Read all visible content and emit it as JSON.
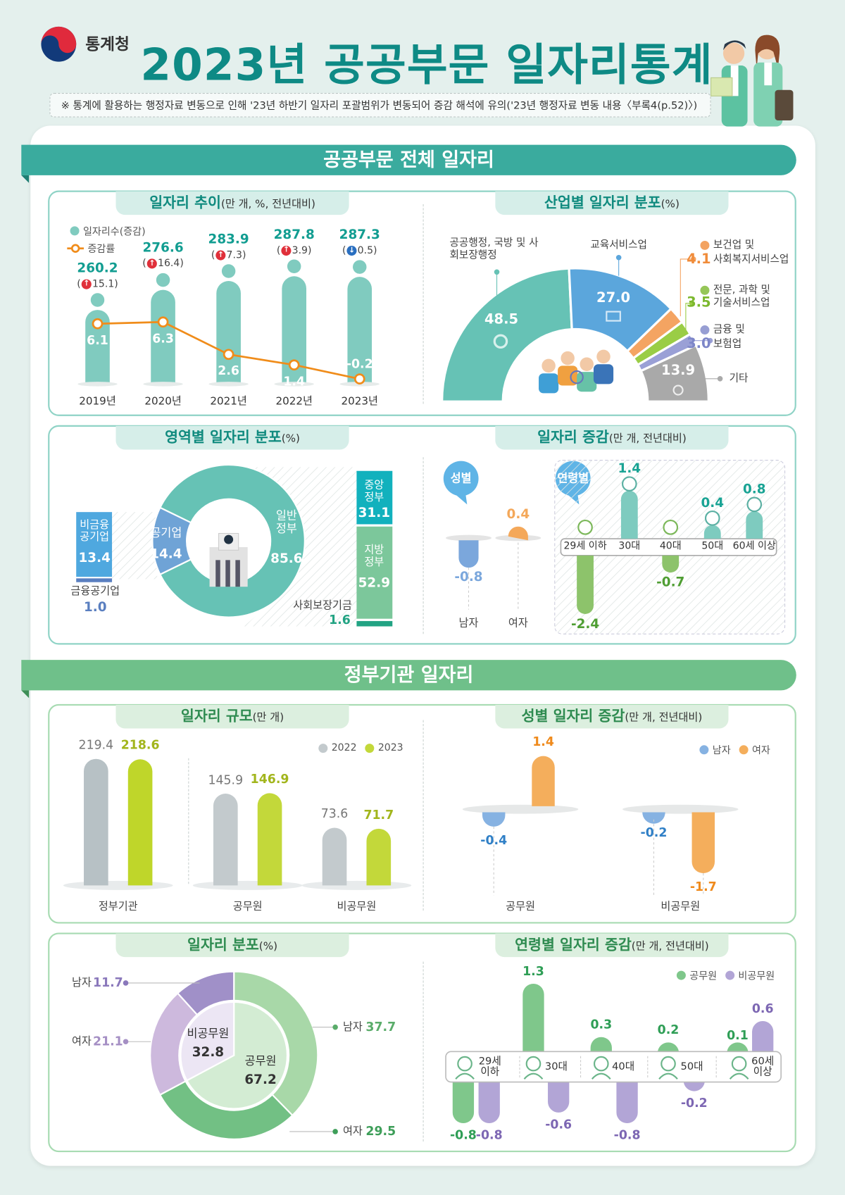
{
  "header": {
    "org": "통계청",
    "title": "2023년 공공부문 일자리통계",
    "note": "※ 통계에 활용하는 행정자료 변동으로 인해 '23년 하반기 일자리 포괄범위가 변동되어 증감 해석에 유의('23년 행정자료 변동 내용〈부록4(p.52)〉)"
  },
  "sections": [
    {
      "title": "공공부문 전체 일자리"
    },
    {
      "title": "정부기관 일자리"
    }
  ],
  "colors": {
    "brand_teal": "#0e8a85",
    "section1": "#3aab9e",
    "section2": "#6fc08a",
    "up_arrow": "#e0303a",
    "down_arrow": "#2a6fc0"
  },
  "chart_data": [
    {
      "type": "bar+line",
      "title": "일자리 추이",
      "unit": "(만 개, %, 전년대비)",
      "categories": [
        "2019년",
        "2020년",
        "2021년",
        "2022년",
        "2023년"
      ],
      "legend": [
        "일자리수(증감)",
        "증감률"
      ],
      "series": [
        {
          "name": "일자리수(증감)",
          "values": [
            260.2,
            276.6,
            283.9,
            287.8,
            287.3
          ],
          "change_labels": [
            "15.1",
            "16.4",
            "7.3",
            "3.9",
            "0.5"
          ],
          "change_direction": [
            "up",
            "up",
            "up",
            "up",
            "down"
          ],
          "color": "#80cbbf"
        },
        {
          "name": "증감률",
          "values": [
            6.1,
            6.3,
            2.6,
            1.4,
            -0.2
          ],
          "color": "#f08c1a"
        }
      ]
    },
    {
      "type": "pie",
      "shape": "half-donut",
      "title": "산업별 일자리 분포",
      "unit": "(%)",
      "slices": [
        {
          "label": "공공행정, 국방 및 사회보장행정",
          "value": 48.5,
          "color": "#66c2b5",
          "icon": "gear-person-icon"
        },
        {
          "label": "교육서비스업",
          "value": 27.0,
          "color": "#5ba6dc",
          "icon": "book-icon"
        },
        {
          "label_1": "보건업 및",
          "label_2": "사회복지서비스업",
          "value": 4.1,
          "color": "#f4a462",
          "icon": "heart-hand-icon"
        },
        {
          "label_1": "전문, 과학 및",
          "label_2": "기술서비스업",
          "value": 3.5,
          "color": "#9acd45",
          "icon": "tools-icon"
        },
        {
          "label_1": "금융 및",
          "label_2": "보험업",
          "value": 3.0,
          "color": "#9aa0d6",
          "icon": "money-icon"
        },
        {
          "label": "기타",
          "value": 13.9,
          "color": "#a9a9a9",
          "icon": "lightbulb-icon"
        }
      ]
    },
    {
      "type": "pie",
      "shape": "donut",
      "title": "영역별 일자리 분포",
      "unit": "(%)",
      "slices": [
        {
          "label": "일반정부",
          "value": 85.6,
          "color": "#66c2b5"
        },
        {
          "label": "공기업",
          "value": 14.4,
          "color": "#6fa3d6"
        }
      ],
      "public_corp_breakdown": [
        {
          "label": "비금융공기업",
          "value": 13.4,
          "color": "#4fa8df"
        },
        {
          "label": "금융공기업",
          "value": 1.0,
          "color": "#5a7fc0"
        }
      ],
      "general_gov_breakdown": [
        {
          "label": "중앙정부",
          "value": 31.1,
          "color": "#12b1bd"
        },
        {
          "label": "지방정부",
          "value": 52.9,
          "color": "#7cc79b"
        },
        {
          "label": "사회보장기금",
          "value": 1.6,
          "color": "#22a383"
        }
      ]
    },
    {
      "type": "bar",
      "title": "일자리 증감",
      "unit": "(만 개, 전년대비)",
      "groups": [
        {
          "name": "성별",
          "categories": [
            "남자",
            "여자"
          ],
          "values": [
            -0.8,
            0.4
          ],
          "colors": [
            "#7ba7dc",
            "#f4a85a"
          ]
        },
        {
          "name": "연령별",
          "categories": [
            "29세 이하",
            "30대",
            "40대",
            "50대",
            "60세 이상"
          ],
          "values": [
            -2.4,
            1.4,
            -0.7,
            0.4,
            0.8
          ],
          "colors": [
            "#8dc36b",
            "#7ecbbf"
          ]
        }
      ]
    },
    {
      "type": "bar",
      "title": "일자리 규모",
      "unit": "(만 개)",
      "categories": [
        "정부기관",
        "공무원",
        "비공무원"
      ],
      "series": [
        {
          "name": "2022",
          "values": [
            219.4,
            145.9,
            73.6
          ],
          "color": "#c3cacd"
        },
        {
          "name": "2023",
          "values": [
            218.6,
            146.9,
            71.7
          ],
          "color": "#c3d83a"
        }
      ],
      "legend": "top-right"
    },
    {
      "type": "bar",
      "title": "성별 일자리 증감",
      "unit": "(만 개, 전년대비)",
      "categories": [
        "공무원",
        "비공무원"
      ],
      "series": [
        {
          "name": "남자",
          "values": [
            -0.4,
            -0.2
          ],
          "color": "#86b2e2"
        },
        {
          "name": "여자",
          "values": [
            1.4,
            -1.7
          ],
          "color": "#f4ae5c"
        }
      ],
      "legend": "top-right"
    },
    {
      "type": "pie",
      "shape": "nested-donut",
      "title": "일자리 분포",
      "unit": "(%)",
      "inner": [
        {
          "label": "공무원",
          "value": 67.2,
          "color": "#d3ecd3"
        },
        {
          "label": "비공무원",
          "value": 32.8,
          "color": "#ece6f4"
        }
      ],
      "outer": [
        {
          "label": "남자",
          "value": 37.7,
          "parent": "공무원",
          "color": "#a8d8a8"
        },
        {
          "label": "여자",
          "value": 29.5,
          "parent": "공무원",
          "color": "#72c084"
        },
        {
          "label": "여자",
          "value": 21.1,
          "parent": "비공무원",
          "color": "#cdb9dd"
        },
        {
          "label": "남자",
          "value": 11.7,
          "parent": "비공무원",
          "color": "#a090c8"
        }
      ]
    },
    {
      "type": "bar",
      "title": "연령별 일자리 증감",
      "unit": "(만 개, 전년대비)",
      "categories": [
        "29세 이하",
        "30대",
        "40대",
        "50대",
        "60세 이상"
      ],
      "series": [
        {
          "name": "공무원",
          "values": [
            -0.8,
            1.3,
            0.3,
            0.2,
            0.1
          ],
          "color": "#7fc78b"
        },
        {
          "name": "비공무원",
          "values": [
            -0.8,
            -0.6,
            -0.8,
            -0.2,
            0.6
          ],
          "color": "#b2a5d6"
        }
      ],
      "legend": "top-right"
    }
  ]
}
